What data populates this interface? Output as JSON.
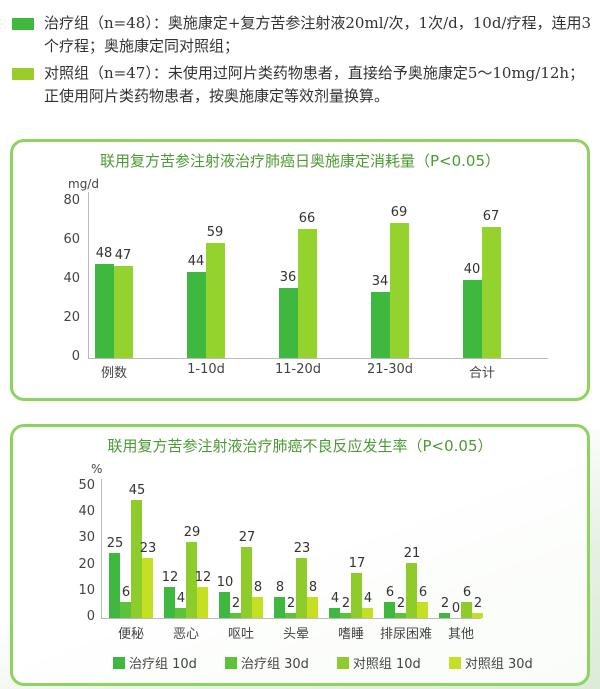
{
  "legend_top": [
    {
      "color": "#3fb83f",
      "text": "治疗组（n=48）：奥施康定+复方苦参注射液20ml/次，1次/d，10d/疗程，连用3个疗程；奥施康定同对照组；"
    },
    {
      "color": "#9acd2b",
      "text": "对照组（n=47）：未使用过阿片类药物患者，直接给予奥施康定5～10mg/12h；正使用阿片类药物患者，按奥施康定等效剂量换算。"
    }
  ],
  "colors": {
    "treat": "#3fb83f",
    "control": "#94d22e",
    "treat10": "#3fb83f",
    "treat30": "#5cc23a",
    "ctrl10": "#8dcc2a",
    "ctrl30": "#c5e022",
    "border": "#8ed35e",
    "title": "#4c9a33"
  },
  "chart_data": [
    {
      "type": "bar",
      "title": "联用复方苦参注射液治疗肺癌日奥施康定消耗量（P<0.05）",
      "ylabel": "mg/d",
      "xlabel": "",
      "ylim": [
        0,
        80
      ],
      "yticks": [
        0,
        20,
        40,
        60,
        80
      ],
      "categories": [
        "例数",
        "1-10d",
        "11-20d",
        "21-30d",
        "合计"
      ],
      "series": [
        {
          "name": "治疗组",
          "values": [
            48,
            44,
            36,
            34,
            40
          ]
        },
        {
          "name": "对照组",
          "values": [
            47,
            59,
            66,
            69,
            67
          ]
        }
      ],
      "grid": false,
      "legend": "none"
    },
    {
      "type": "bar",
      "title": "联用复方苦参注射液治疗肺癌不良反应发生率（P<0.05）",
      "ylabel": "%",
      "xlabel": "",
      "ylim": [
        0,
        50
      ],
      "yticks": [
        0,
        10,
        20,
        30,
        40,
        50
      ],
      "categories": [
        "便秘",
        "恶心",
        "呕吐",
        "头晕",
        "嗜睡",
        "排尿困难",
        "其他"
      ],
      "series": [
        {
          "name": "治疗组 10d",
          "values": [
            25,
            12,
            10,
            8,
            4,
            6,
            2
          ]
        },
        {
          "name": "治疗组 30d",
          "values": [
            6,
            4,
            2,
            2,
            2,
            2,
            0
          ]
        },
        {
          "name": "对照组 10d",
          "values": [
            45,
            29,
            27,
            23,
            17,
            21,
            6
          ]
        },
        {
          "name": "对照组 30d",
          "values": [
            23,
            12,
            8,
            8,
            4,
            6,
            2
          ]
        }
      ],
      "grid": false,
      "legend": "bottom"
    }
  ]
}
